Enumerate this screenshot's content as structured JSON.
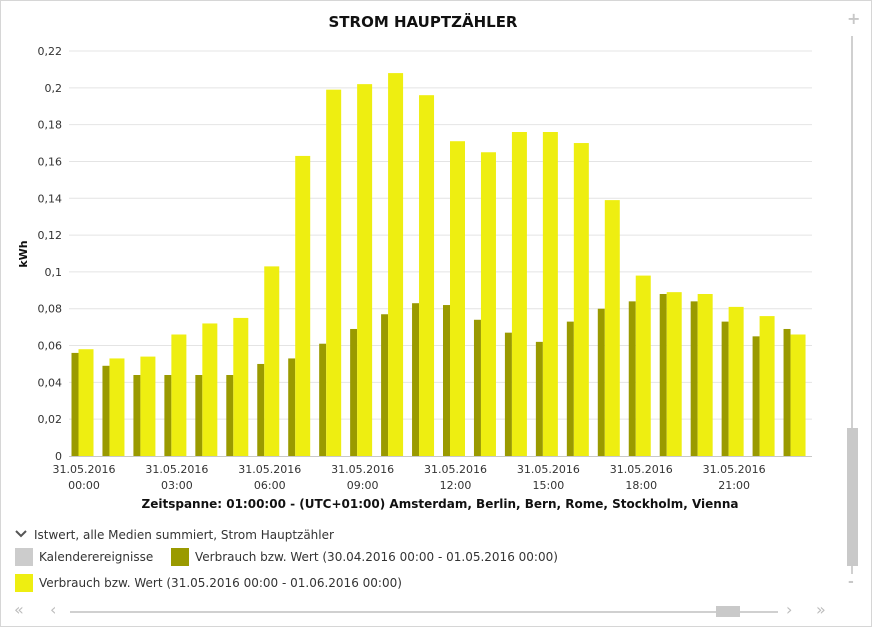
{
  "chart_data": {
    "type": "bar",
    "title": "STROM HAUPTZÄHLER",
    "ylabel": "kWh",
    "xlabel": "Zeitspanne: 01:00:00 - (UTC+01:00) Amsterdam, Berlin, Bern, Rome, Stockholm, Vienna",
    "ylim": [
      0,
      0.22
    ],
    "y_ticks": [
      "0",
      "0,02",
      "0,04",
      "0,06",
      "0,08",
      "0,1",
      "0,12",
      "0,14",
      "0,16",
      "0,18",
      "0,2",
      "0,22"
    ],
    "x_tick_labels": [
      {
        "slot": 0,
        "line1": "31.05.2016",
        "line2": "00:00"
      },
      {
        "slot": 3,
        "line1": "31.05.2016",
        "line2": "03:00"
      },
      {
        "slot": 6,
        "line1": "31.05.2016",
        "line2": "06:00"
      },
      {
        "slot": 9,
        "line1": "31.05.2016",
        "line2": "09:00"
      },
      {
        "slot": 12,
        "line1": "31.05.2016",
        "line2": "12:00"
      },
      {
        "slot": 15,
        "line1": "31.05.2016",
        "line2": "15:00"
      },
      {
        "slot": 18,
        "line1": "31.05.2016",
        "line2": "18:00"
      },
      {
        "slot": 21,
        "line1": "31.05.2016",
        "line2": "21:00"
      }
    ],
    "grid": true,
    "series": [
      {
        "name": "Verbrauch bzw. Wert (30.04.2016 00:00 - 01.05.2016 00:00)",
        "color": "#9a9a00",
        "values": [
          0.056,
          0.049,
          0.044,
          0.044,
          0.044,
          0.044,
          0.05,
          0.053,
          0.061,
          0.069,
          0.077,
          0.083,
          0.082,
          0.074,
          0.067,
          0.062,
          0.073,
          0.08,
          0.084,
          0.088,
          0.084,
          0.073,
          0.065,
          0.069
        ]
      },
      {
        "name": "Verbrauch bzw. Wert (31.05.2016 00:00 - 01.06.2016 00:00)",
        "color": "#eeee11",
        "values": [
          0.058,
          0.053,
          0.054,
          0.066,
          0.072,
          0.075,
          0.103,
          0.163,
          0.199,
          0.202,
          0.208,
          0.196,
          0.171,
          0.165,
          0.176,
          0.176,
          0.17,
          0.139,
          0.098,
          0.089,
          0.088,
          0.081,
          0.076,
          0.066
        ]
      }
    ]
  },
  "legend": {
    "group_label": "Istwert, alle Medien summiert, Strom Hauptzähler",
    "items": [
      {
        "label": "Kalenderereignisse",
        "color": "#cccccc"
      },
      {
        "label": "Verbrauch bzw. Wert (30.04.2016 00:00 - 01.05.2016 00:00)",
        "color": "#9a9a00"
      },
      {
        "label": "Verbrauch bzw. Wert (31.05.2016 00:00 - 01.06.2016 00:00)",
        "color": "#eeee11"
      }
    ]
  },
  "scrollbars": {
    "v_plus_icon": "plus-icon",
    "v_minus_icon": "minus-icon",
    "h_first_icon": "double-chevron-left-icon",
    "h_prev_icon": "chevron-left-icon",
    "h_next_icon": "chevron-right-icon",
    "h_last_icon": "double-chevron-right-icon"
  }
}
